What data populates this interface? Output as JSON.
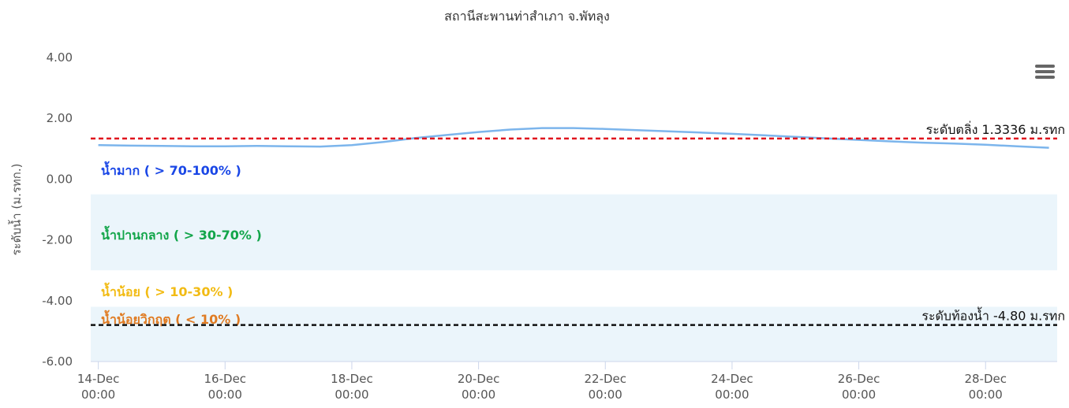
{
  "chart_data": {
    "type": "line",
    "title": "สถานีสะพานท่าสำเภา จ.พัทลุง",
    "y_axis_label": "ระดับน้ำ (ม.รทก.)",
    "series": [
      {
        "name": "ระดับน้ำ",
        "color": "#7cb5ec",
        "x": [
          14.0,
          14.5,
          15.0,
          15.5,
          16.0,
          16.5,
          17.0,
          17.5,
          18.0,
          18.5,
          19.0,
          19.5,
          20.0,
          20.5,
          21.0,
          21.5,
          22.0,
          22.5,
          23.0,
          23.5,
          24.0,
          24.5,
          25.0,
          25.5,
          26.0,
          26.5,
          27.0,
          27.5,
          28.0,
          28.5,
          29.0
        ],
        "values": [
          1.12,
          1.1,
          1.09,
          1.08,
          1.08,
          1.09,
          1.08,
          1.07,
          1.12,
          1.22,
          1.35,
          1.45,
          1.55,
          1.63,
          1.68,
          1.68,
          1.65,
          1.61,
          1.57,
          1.53,
          1.49,
          1.44,
          1.39,
          1.34,
          1.29,
          1.24,
          1.2,
          1.17,
          1.13,
          1.08,
          1.03
        ]
      }
    ],
    "xlim": [
      13.88,
      29.13
    ],
    "xticks": [
      {
        "value": 14,
        "label": "14-Dec 00:00"
      },
      {
        "value": 16,
        "label": "16-Dec 00:00"
      },
      {
        "value": 18,
        "label": "18-Dec 00:00"
      },
      {
        "value": 20,
        "label": "20-Dec 00:00"
      },
      {
        "value": 22,
        "label": "22-Dec 00:00"
      },
      {
        "value": 24,
        "label": "24-Dec 00:00"
      },
      {
        "value": 26,
        "label": "26-Dec 00:00"
      },
      {
        "value": 28,
        "label": "28-Dec 00:00"
      }
    ],
    "ylim": [
      -6,
      4
    ],
    "yticks": [
      {
        "value": 4,
        "label": "4.00"
      },
      {
        "value": 2,
        "label": "2.00"
      },
      {
        "value": 0,
        "label": "0.00"
      },
      {
        "value": -2,
        "label": "-2.00"
      },
      {
        "value": -4,
        "label": "-4.00"
      },
      {
        "value": -6,
        "label": "-6.00"
      }
    ],
    "grid": false,
    "plot_bands": [
      {
        "from": -0.5,
        "to": -3.0,
        "color": "#ebf5fb"
      },
      {
        "from": -4.2,
        "to": -6.0,
        "color": "#ebf5fb"
      }
    ],
    "zone_labels": [
      {
        "text": "น้ำมาก ( > 70-100% )",
        "color": "#1a47e6"
      },
      {
        "text": "น้ำปานกลาง ( > 30-70% )",
        "color": "#12a54a"
      },
      {
        "text": "น้ำน้อย ( > 10-30% )",
        "color": "#f2bb14"
      },
      {
        "text": "น้ำน้อยวิกฤต ( < 10% )",
        "color": "#e07b22"
      }
    ],
    "plot_lines": [
      {
        "value": 1.3336,
        "label": "ระดับตลิ่ง 1.3336 ม.รทก",
        "color": "#e0141e"
      },
      {
        "value": -4.8,
        "label": "ระดับท้องน้ำ -4.80 ม.รทก",
        "color": "#111111"
      }
    ]
  }
}
